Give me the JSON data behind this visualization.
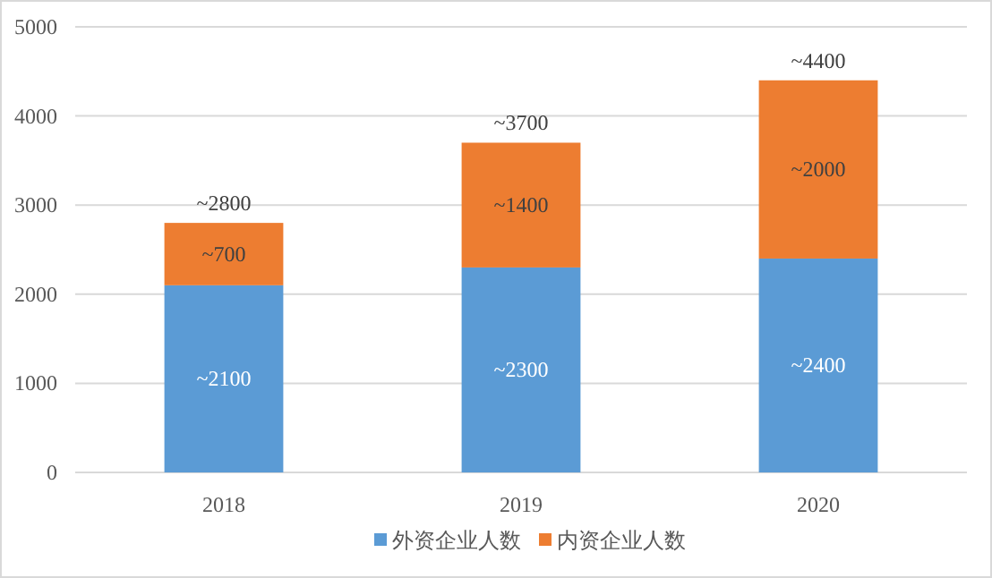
{
  "chart_data": {
    "type": "bar",
    "stacked": true,
    "categories": [
      "2018",
      "2019",
      "2020"
    ],
    "series": [
      {
        "name": "外资企业人数",
        "color": "#5b9bd5",
        "values": [
          2100,
          2300,
          2400
        ],
        "value_labels": [
          "~2100",
          "~2300",
          "~2400"
        ]
      },
      {
        "name": "内资企业人数",
        "color": "#ed7d31",
        "values": [
          700,
          1400,
          2000
        ],
        "value_labels": [
          "~700",
          "~1400",
          "~2000"
        ]
      }
    ],
    "totals": [
      "~2800",
      "~3700",
      "~4400"
    ],
    "ylim": [
      0,
      5000
    ],
    "yticks": [
      0,
      1000,
      2000,
      3000,
      4000,
      5000
    ],
    "grid": "y",
    "legend": "bottom"
  }
}
